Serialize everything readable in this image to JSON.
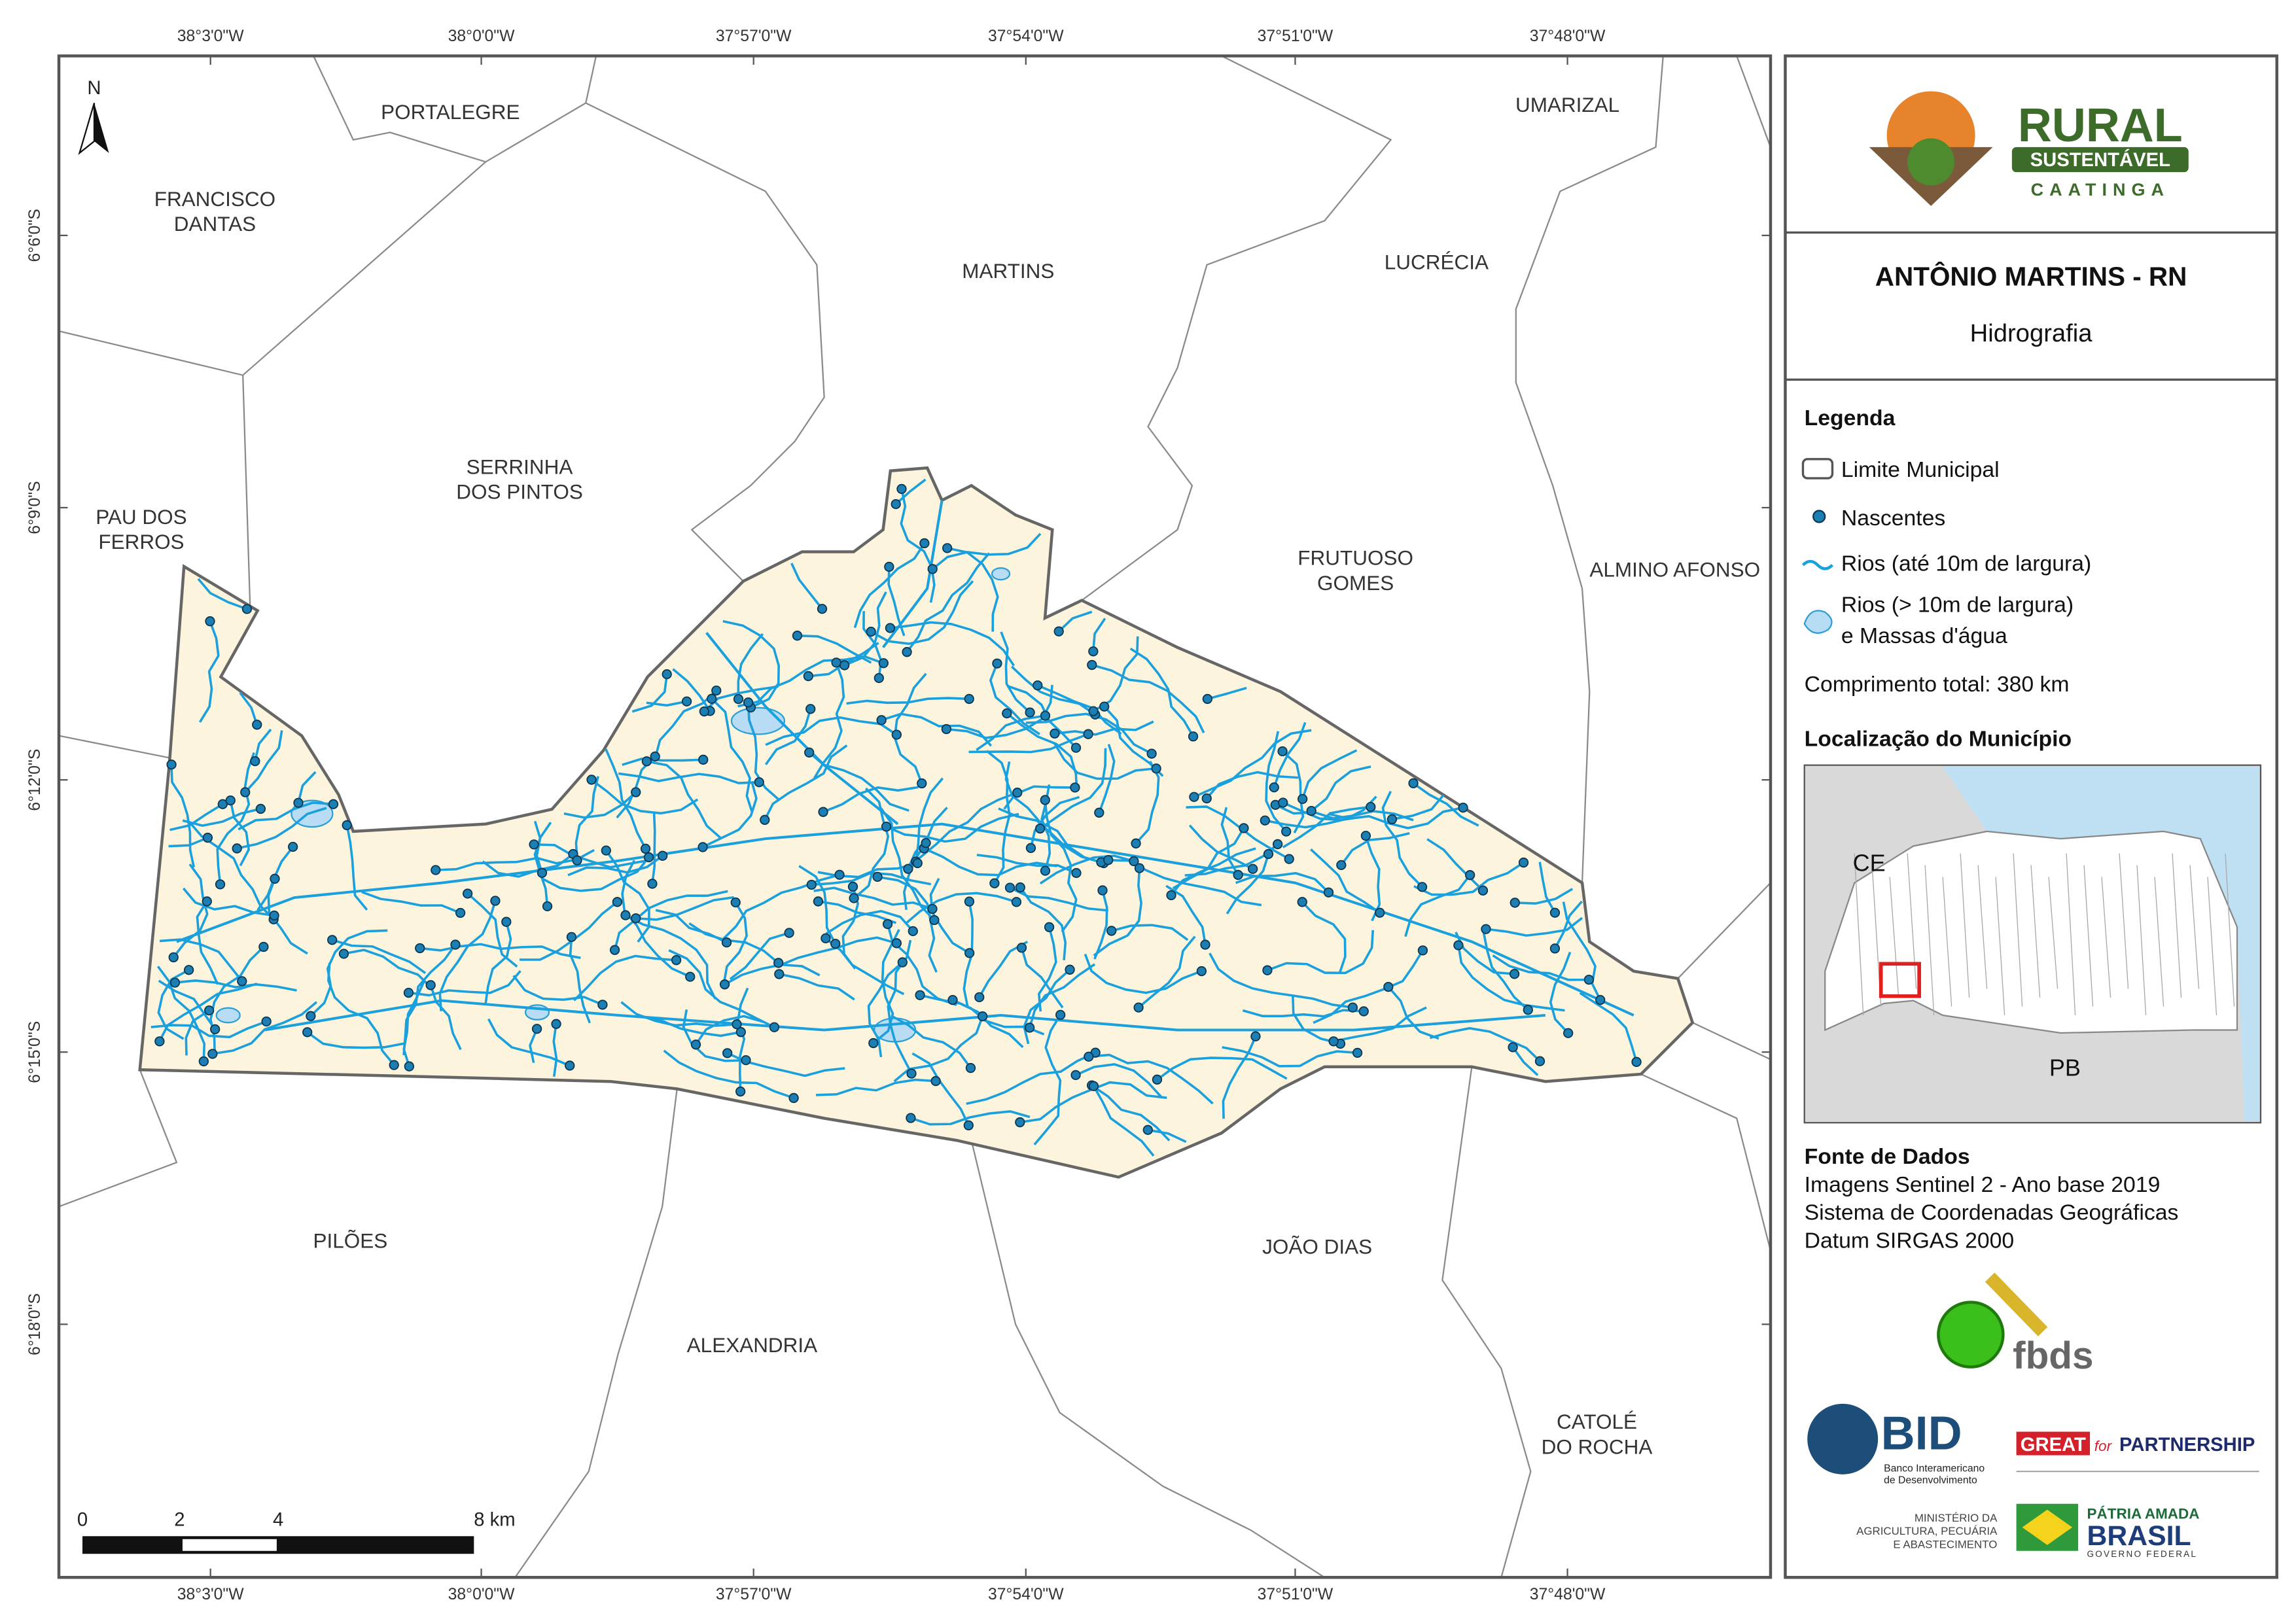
{
  "map": {
    "longitude_labels": [
      "38°3'0\"W",
      "38°0'0\"W",
      "37°57'0\"W",
      "37°54'0\"W",
      "37°51'0\"W",
      "37°48'0\"W"
    ],
    "latitude_labels": [
      "6°6'0\"S",
      "6°9'0\"S",
      "6°12'0\"S",
      "6°15'0\"S",
      "6°18'0\"S"
    ],
    "north": "N",
    "municipalities": [
      [
        "PORTALEGRE"
      ],
      [
        "FRANCISCO",
        "DANTAS"
      ],
      [
        "MARTINS"
      ],
      [
        "UMARIZAL"
      ],
      [
        "LUCRÉCIA"
      ],
      [
        "SERRINHA",
        "DOS PINTOS"
      ],
      [
        "PAU DOS",
        "FERROS"
      ],
      [
        "FRUTUOSO",
        "GOMES"
      ],
      [
        "ALMINO AFONSO"
      ],
      [
        "PILÕES"
      ],
      [
        "ALEXANDRIA"
      ],
      [
        "JOÃO DIAS"
      ],
      [
        "CATOLÉ",
        "DO ROCHA"
      ]
    ],
    "scale_bar": [
      "0",
      "2",
      "4",
      "8 km"
    ]
  },
  "panel": {
    "logo": {
      "title": "RURAL",
      "subtitle": "SUSTENTÁVEL",
      "tagline": "CAATINGA"
    },
    "title": "ANTÔNIO MARTINS - RN",
    "subtitle": "Hidrografia",
    "legend": {
      "title": "Legenda",
      "items": [
        [
          "Limite Municipal"
        ],
        [
          "Nascentes"
        ],
        [
          "Rios (até 10m de largura)"
        ],
        [
          "Rios (> 10m de largura)",
          "e Massas d'água"
        ]
      ],
      "total": "Comprimento total:  380 km"
    },
    "location": {
      "title": "Localização do Município",
      "labels": [
        "CE",
        "PB"
      ]
    },
    "sources": {
      "title": "Fonte de Dados",
      "lines": [
        "Imagens Sentinel 2 - Ano base 2019",
        "Sistema de Coordenadas Geográficas",
        "Datum SIRGAS 2000"
      ]
    },
    "partners": {
      "fbds": "fbds",
      "bid": "BID",
      "bid_name": [
        "Banco Interamericano",
        "de Desenvolvimento"
      ],
      "great": "GREAT",
      "great_for": "for",
      "great_partnership": "PARTNERSHIP",
      "ministry": [
        "MINISTÉRIO DA",
        "AGRICULTURA, PECUÁRIA",
        "E ABASTECIMENTO"
      ],
      "brasil_top": "PÁTRIA AMADA",
      "brasil": "BRASIL",
      "brasil_gov": "GOVERNO FEDERAL"
    }
  }
}
